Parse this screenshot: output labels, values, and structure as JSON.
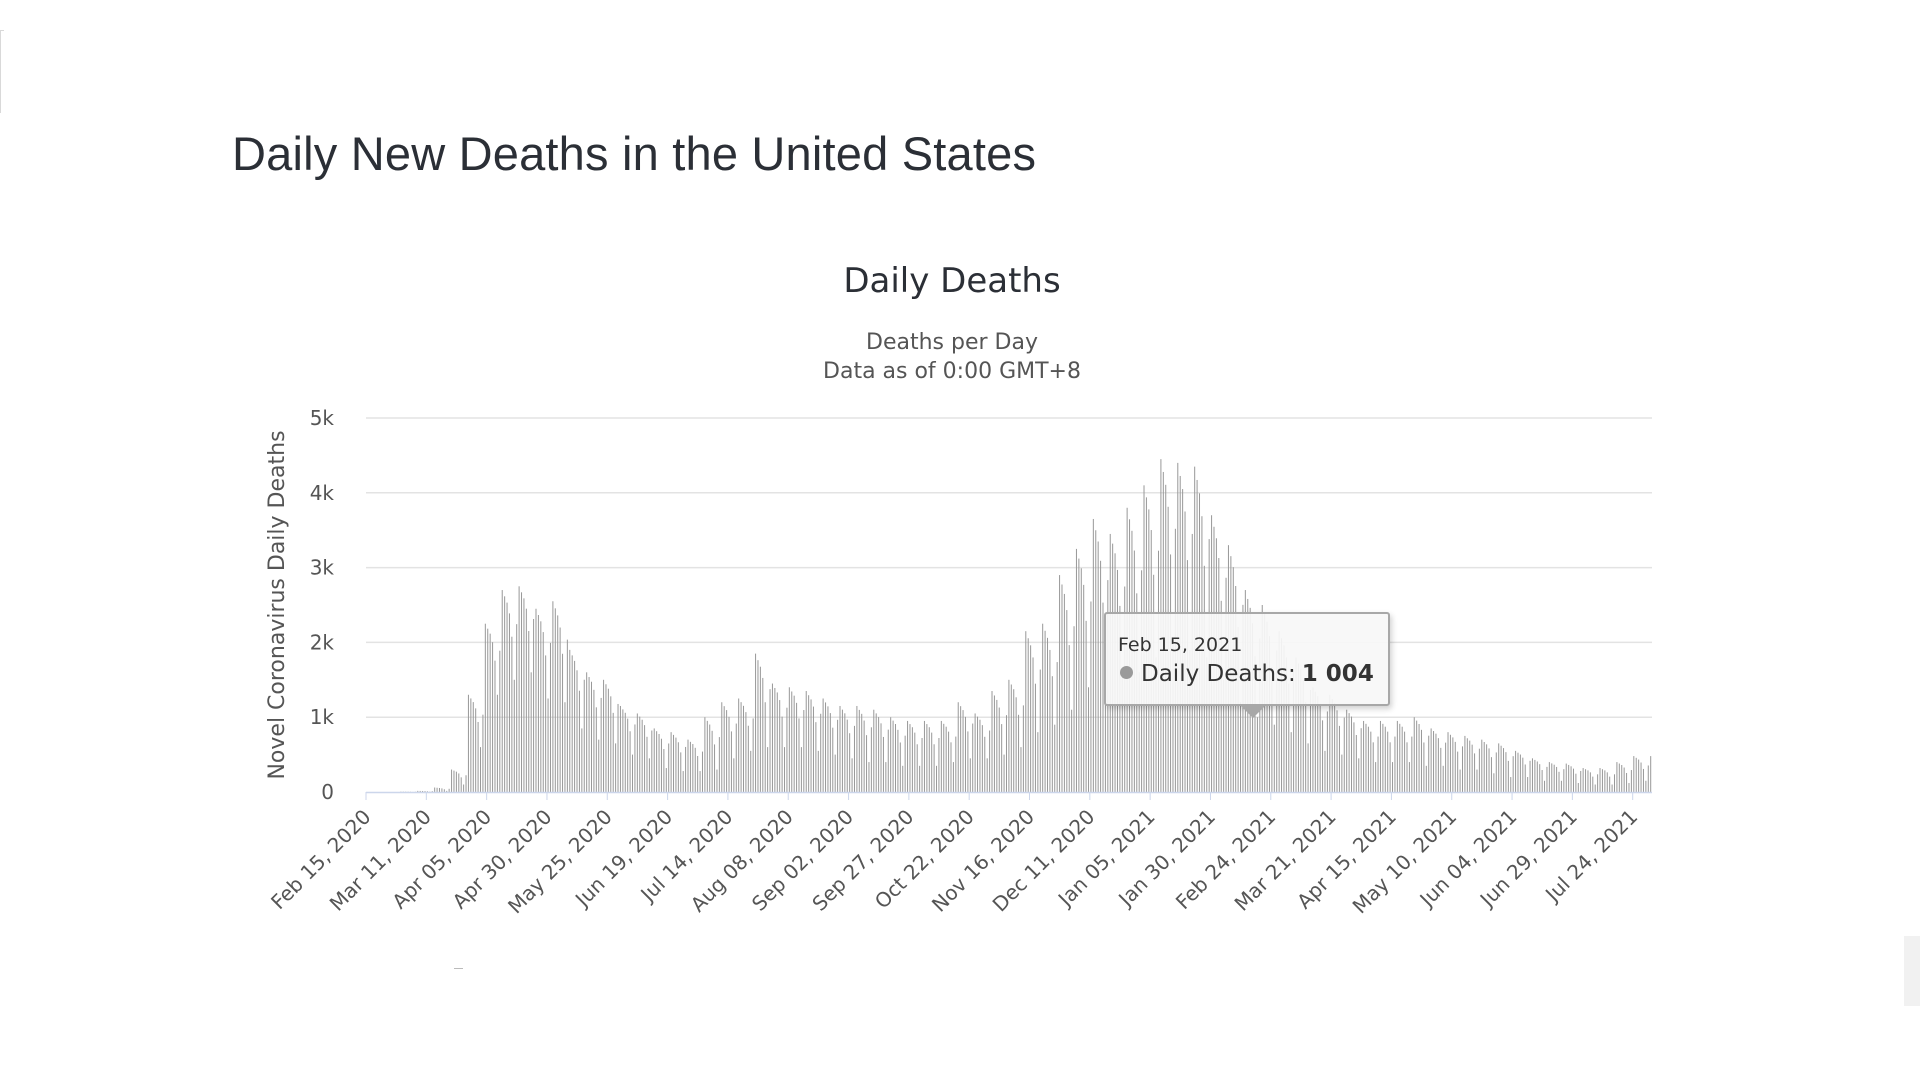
{
  "page": {
    "heading": "Daily New Deaths in the United States"
  },
  "chart_data": {
    "type": "bar",
    "title": "Daily Deaths",
    "subtitle_line1": "Deaths per Day",
    "subtitle_line2": "Data as of 0:00 GMT+8",
    "ylabel": "Novel Coronavirus Daily Deaths",
    "xlabel": "",
    "ylim": [
      0,
      5000
    ],
    "y_ticks": [
      0,
      1000,
      2000,
      3000,
      4000,
      5000
    ],
    "y_tick_labels": [
      "0",
      "1k",
      "2k",
      "3k",
      "4k",
      "5k"
    ],
    "x_start": "2020-02-15",
    "x_end": "2021-07-31",
    "x_tick_dates": [
      "2020-02-15",
      "2020-03-11",
      "2020-04-05",
      "2020-04-30",
      "2020-05-25",
      "2020-06-19",
      "2020-07-14",
      "2020-08-08",
      "2020-09-02",
      "2020-09-27",
      "2020-10-22",
      "2020-11-16",
      "2020-12-11",
      "2021-01-05",
      "2021-01-30",
      "2021-02-24",
      "2021-03-21",
      "2021-04-15",
      "2021-05-10",
      "2021-06-04",
      "2021-06-29",
      "2021-07-24"
    ],
    "x_tick_labels": [
      "Feb 15, 2020",
      "Mar 11, 2020",
      "Apr 05, 2020",
      "Apr 30, 2020",
      "May 25, 2020",
      "Jun 19, 2020",
      "Jul 14, 2020",
      "Aug 08, 2020",
      "Sep 02, 2020",
      "Sep 27, 2020",
      "Oct 22, 2020",
      "Nov 16, 2020",
      "Dec 11, 2020",
      "Jan 05, 2021",
      "Jan 30, 2021",
      "Feb 24, 2021",
      "Mar 21, 2021",
      "Apr 15, 2021",
      "May 10, 2021",
      "Jun 04, 2021",
      "Jun 29, 2021",
      "Jul 24, 2021"
    ],
    "grid": true,
    "series": [
      {
        "name": "Daily Deaths",
        "color": "#999999",
        "weekly_peaks": [
          {
            "week_of": "2020-02-15",
            "peak": 0,
            "low": 0
          },
          {
            "week_of": "2020-02-22",
            "peak": 0,
            "low": 0
          },
          {
            "week_of": "2020-02-29",
            "peak": 5,
            "low": 1
          },
          {
            "week_of": "2020-03-07",
            "peak": 15,
            "low": 5
          },
          {
            "week_of": "2020-03-14",
            "peak": 60,
            "low": 15
          },
          {
            "week_of": "2020-03-21",
            "peak": 300,
            "low": 100
          },
          {
            "week_of": "2020-03-28",
            "peak": 1300,
            "low": 600
          },
          {
            "week_of": "2020-04-04",
            "peak": 2250,
            "low": 1300
          },
          {
            "week_of": "2020-04-11",
            "peak": 2700,
            "low": 1500
          },
          {
            "week_of": "2020-04-18",
            "peak": 2750,
            "low": 1600
          },
          {
            "week_of": "2020-04-25",
            "peak": 2450,
            "low": 1250
          },
          {
            "week_of": "2020-05-02",
            "peak": 2550,
            "low": 1200
          },
          {
            "week_of": "2020-05-09",
            "peak": 1900,
            "low": 850
          },
          {
            "week_of": "2020-05-16",
            "peak": 1600,
            "low": 700
          },
          {
            "week_of": "2020-05-23",
            "peak": 1500,
            "low": 650
          },
          {
            "week_of": "2020-05-30",
            "peak": 1150,
            "low": 500
          },
          {
            "week_of": "2020-06-06",
            "peak": 1050,
            "low": 450
          },
          {
            "week_of": "2020-06-13",
            "peak": 850,
            "low": 320
          },
          {
            "week_of": "2020-06-20",
            "peak": 800,
            "low": 280
          },
          {
            "week_of": "2020-06-27",
            "peak": 700,
            "low": 280
          },
          {
            "week_of": "2020-07-04",
            "peak": 1000,
            "low": 300
          },
          {
            "week_of": "2020-07-11",
            "peak": 1200,
            "low": 450
          },
          {
            "week_of": "2020-07-18",
            "peak": 1250,
            "low": 550
          },
          {
            "week_of": "2020-07-25",
            "peak": 1850,
            "low": 600
          },
          {
            "week_of": "2020-08-01",
            "peak": 1450,
            "low": 600
          },
          {
            "week_of": "2020-08-08",
            "peak": 1400,
            "low": 600
          },
          {
            "week_of": "2020-08-15",
            "peak": 1350,
            "low": 550
          },
          {
            "week_of": "2020-08-22",
            "peak": 1250,
            "low": 500
          },
          {
            "week_of": "2020-08-29",
            "peak": 1150,
            "low": 450
          },
          {
            "week_of": "2020-09-05",
            "peak": 1150,
            "low": 400
          },
          {
            "week_of": "2020-09-12",
            "peak": 1100,
            "low": 400
          },
          {
            "week_of": "2020-09-19",
            "peak": 1000,
            "low": 350
          },
          {
            "week_of": "2020-09-26",
            "peak": 950,
            "low": 350
          },
          {
            "week_of": "2020-10-03",
            "peak": 950,
            "low": 350
          },
          {
            "week_of": "2020-10-10",
            "peak": 950,
            "low": 400
          },
          {
            "week_of": "2020-10-17",
            "peak": 1200,
            "low": 450
          },
          {
            "week_of": "2020-10-24",
            "peak": 1050,
            "low": 450
          },
          {
            "week_of": "2020-10-31",
            "peak": 1350,
            "low": 500
          },
          {
            "week_of": "2020-11-07",
            "peak": 1500,
            "low": 600
          },
          {
            "week_of": "2020-11-14",
            "peak": 2150,
            "low": 800
          },
          {
            "week_of": "2020-11-21",
            "peak": 2250,
            "low": 900
          },
          {
            "week_of": "2020-11-28",
            "peak": 2900,
            "low": 1100
          },
          {
            "week_of": "2020-12-05",
            "peak": 3250,
            "low": 1400
          },
          {
            "week_of": "2020-12-12",
            "peak": 3650,
            "low": 1500
          },
          {
            "week_of": "2020-12-19",
            "peak": 3450,
            "low": 1600
          },
          {
            "week_of": "2020-12-26",
            "peak": 3800,
            "low": 1600
          },
          {
            "week_of": "2021-01-02",
            "peak": 4100,
            "low": 1800
          },
          {
            "week_of": "2021-01-09",
            "peak": 4450,
            "low": 2000
          },
          {
            "week_of": "2021-01-16",
            "peak": 4400,
            "low": 1900
          },
          {
            "week_of": "2021-01-23",
            "peak": 4350,
            "low": 1800
          },
          {
            "week_of": "2021-01-30",
            "peak": 3700,
            "low": 1500
          },
          {
            "week_of": "2021-02-06",
            "peak": 3300,
            "low": 1200
          },
          {
            "week_of": "2021-02-13",
            "peak": 2700,
            "low": 1000
          },
          {
            "week_of": "2021-02-20",
            "peak": 2500,
            "low": 900
          },
          {
            "week_of": "2021-02-27",
            "peak": 2150,
            "low": 800
          },
          {
            "week_of": "2021-03-06",
            "peak": 1800,
            "low": 650
          },
          {
            "week_of": "2021-03-13",
            "peak": 1400,
            "low": 550
          },
          {
            "week_of": "2021-03-20",
            "peak": 1300,
            "low": 500
          },
          {
            "week_of": "2021-03-27",
            "peak": 1100,
            "low": 450
          },
          {
            "week_of": "2021-04-03",
            "peak": 950,
            "low": 400
          },
          {
            "week_of": "2021-04-10",
            "peak": 950,
            "low": 400
          },
          {
            "week_of": "2021-04-17",
            "peak": 950,
            "low": 400
          },
          {
            "week_of": "2021-04-24",
            "peak": 1000,
            "low": 350
          },
          {
            "week_of": "2021-05-01",
            "peak": 850,
            "low": 350
          },
          {
            "week_of": "2021-05-08",
            "peak": 800,
            "low": 300
          },
          {
            "week_of": "2021-05-15",
            "peak": 750,
            "low": 300
          },
          {
            "week_of": "2021-05-22",
            "peak": 700,
            "low": 250
          },
          {
            "week_of": "2021-05-29",
            "peak": 650,
            "low": 200
          },
          {
            "week_of": "2021-06-05",
            "peak": 550,
            "low": 200
          },
          {
            "week_of": "2021-06-12",
            "peak": 450,
            "low": 150
          },
          {
            "week_of": "2021-06-19",
            "peak": 400,
            "low": 150
          },
          {
            "week_of": "2021-06-26",
            "peak": 380,
            "low": 120
          },
          {
            "week_of": "2021-07-03",
            "peak": 320,
            "low": 100
          },
          {
            "week_of": "2021-07-10",
            "peak": 320,
            "low": 100
          },
          {
            "week_of": "2021-07-17",
            "peak": 400,
            "low": 120
          },
          {
            "week_of": "2021-07-24",
            "peak": 480,
            "low": 150
          }
        ]
      }
    ],
    "tooltip": {
      "date": "Feb 15, 2021",
      "series_label": "Daily Deaths:",
      "value_text": "1 004",
      "value": 1004
    }
  }
}
